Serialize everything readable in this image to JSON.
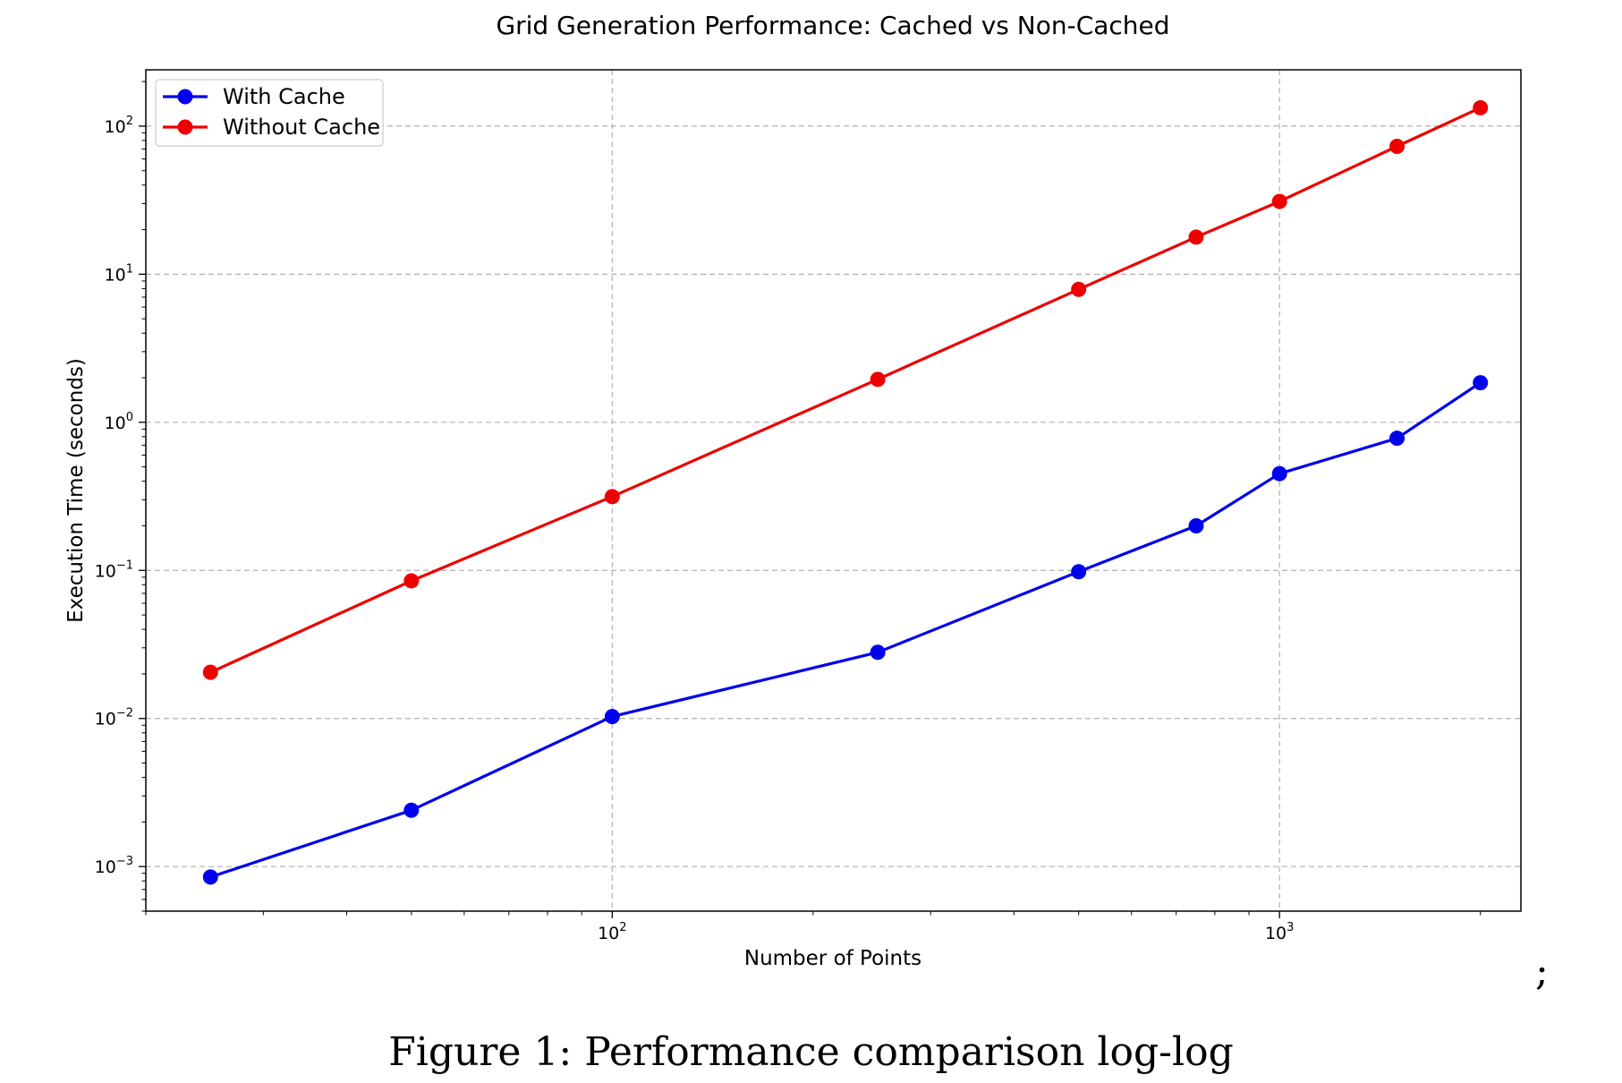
{
  "chart_data": {
    "type": "line",
    "title": "Grid Generation Performance: Cached vs Non-Cached",
    "xlabel": "Number of Points",
    "ylabel": "Execution Time (seconds)",
    "xscale": "log",
    "yscale": "log",
    "xlim": [
      20,
      2300
    ],
    "ylim": [
      0.0005,
      240
    ],
    "grid": true,
    "legend_position": "top-left",
    "x": [
      25,
      50,
      100,
      250,
      500,
      750,
      1000,
      1500,
      2000
    ],
    "series": [
      {
        "name": "With Cache",
        "color": "#0000ee",
        "values": [
          0.00085,
          0.0024,
          0.0103,
          0.028,
          0.098,
          0.2,
          0.45,
          0.78,
          1.85
        ]
      },
      {
        "name": "Without Cache",
        "color": "#ee0000",
        "values": [
          0.0205,
          0.085,
          0.315,
          1.95,
          7.9,
          17.8,
          31,
          73,
          133
        ]
      }
    ],
    "x_ticks": [
      {
        "base": "10",
        "exp": "2",
        "value": 100
      },
      {
        "base": "10",
        "exp": "3",
        "value": 1000
      }
    ],
    "y_ticks": [
      {
        "base": "10",
        "exp": "−3",
        "value": 0.001
      },
      {
        "base": "10",
        "exp": "−2",
        "value": 0.01
      },
      {
        "base": "10",
        "exp": "−1",
        "value": 0.1
      },
      {
        "base": "10",
        "exp": "0",
        "value": 1
      },
      {
        "base": "10",
        "exp": "1",
        "value": 10
      },
      {
        "base": "10",
        "exp": "2",
        "value": 100
      }
    ]
  },
  "caption": "Figure 1: Performance comparison log-log",
  "trailing_mark": ";"
}
